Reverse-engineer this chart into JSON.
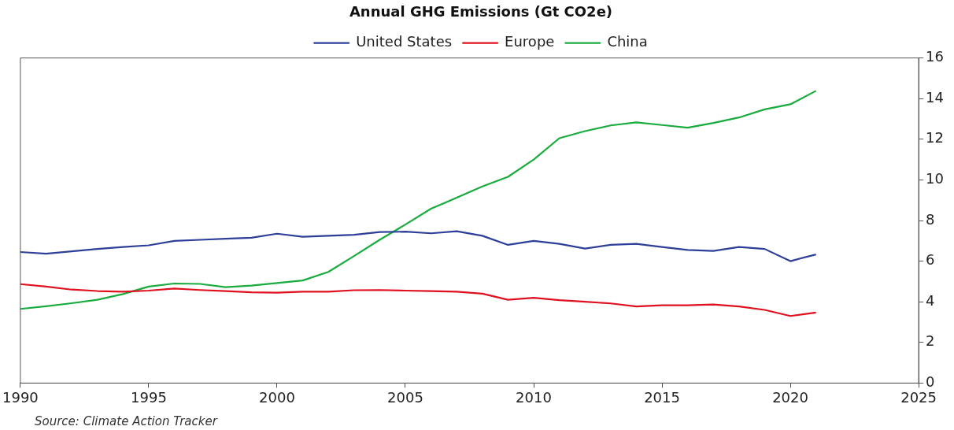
{
  "chart_data": {
    "type": "line",
    "title": "Annual GHG Emissions (Gt CO2e)",
    "x": [
      1990,
      1991,
      1992,
      1993,
      1994,
      1995,
      1996,
      1997,
      1998,
      1999,
      2000,
      2001,
      2002,
      2003,
      2004,
      2005,
      2006,
      2007,
      2008,
      2009,
      2010,
      2011,
      2012,
      2013,
      2014,
      2015,
      2016,
      2017,
      2018,
      2019,
      2020,
      2021
    ],
    "series": [
      {
        "name": "United States",
        "color": "#2e3f9a",
        "values": [
          6.45,
          6.37,
          6.48,
          6.6,
          6.7,
          6.78,
          7.0,
          7.05,
          7.1,
          7.15,
          7.35,
          7.2,
          7.25,
          7.3,
          7.43,
          7.45,
          7.37,
          7.47,
          7.25,
          6.8,
          7.0,
          6.85,
          6.62,
          6.8,
          6.85,
          6.7,
          6.55,
          6.5,
          6.7,
          6.6,
          6.0,
          6.33
        ]
      },
      {
        "name": "Europe",
        "color": "#e0101e",
        "values": [
          4.87,
          4.75,
          4.6,
          4.53,
          4.5,
          4.55,
          4.65,
          4.58,
          4.53,
          4.47,
          4.45,
          4.5,
          4.5,
          4.57,
          4.58,
          4.55,
          4.53,
          4.5,
          4.4,
          4.1,
          4.2,
          4.08,
          4.0,
          3.92,
          3.77,
          3.83,
          3.83,
          3.87,
          3.77,
          3.6,
          3.3,
          3.47
        ]
      },
      {
        "name": "China",
        "color": "#1aab3e",
        "values": [
          3.65,
          3.78,
          3.93,
          4.1,
          4.38,
          4.75,
          4.9,
          4.88,
          4.72,
          4.8,
          4.92,
          5.05,
          5.47,
          6.25,
          7.05,
          7.8,
          8.58,
          9.12,
          9.68,
          10.15,
          11.0,
          12.05,
          12.4,
          12.68,
          12.83,
          12.7,
          12.57,
          12.8,
          13.07,
          13.47,
          13.72,
          14.38
        ]
      }
    ],
    "xlim": [
      1990,
      2025
    ],
    "xticks": [
      1990,
      1995,
      2000,
      2005,
      2010,
      2015,
      2020,
      2025
    ],
    "ylim": [
      0,
      16
    ],
    "yticks": [
      0,
      2,
      4,
      6,
      8,
      10,
      12,
      14,
      16
    ],
    "grid": false,
    "legend": "top",
    "marker": "none",
    "line_style": "solid",
    "annotations": [
      "Source: Climate Action Tracker"
    ]
  }
}
